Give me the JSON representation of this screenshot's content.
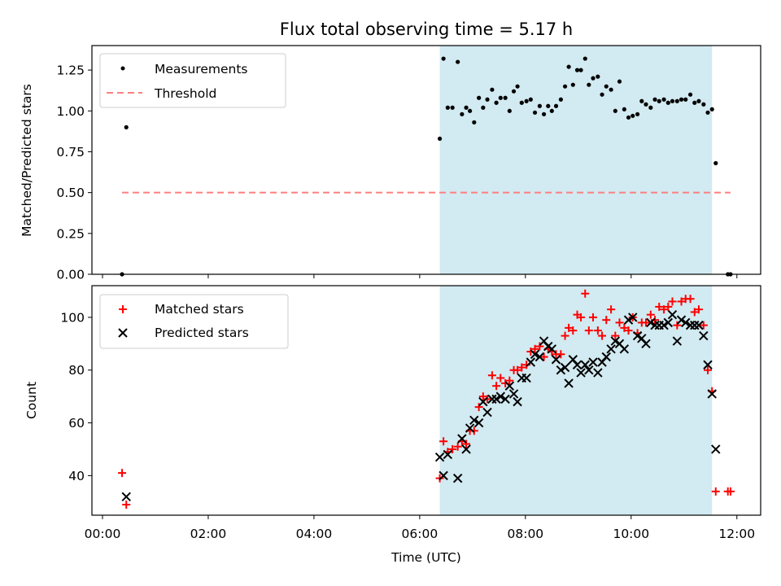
{
  "chart_data": {
    "type": "scatter",
    "title": "Flux total observing time = 5.17 h",
    "xlabel": "Time (UTC)",
    "x_ticks": [
      "00:00",
      "02:00",
      "04:00",
      "06:00",
      "08:00",
      "10:00",
      "12:00"
    ],
    "xlim_hours": [
      -0.2,
      12.45
    ],
    "shaded_region_hours": [
      6.38,
      11.53
    ],
    "colors": {
      "shade": "#add8e6",
      "measure": "#000000",
      "threshold": "#ff7f7f",
      "matched": "#ff0000",
      "predicted": "#000000"
    },
    "panels": [
      {
        "ylabel": "Matched/Predicted stars",
        "ylim": [
          0,
          1.4
        ],
        "y_ticks": [
          "0.00",
          "0.25",
          "0.50",
          "0.75",
          "1.00",
          "1.25"
        ],
        "legend": [
          "Measurements",
          "Threshold"
        ],
        "threshold": {
          "value": 0.5,
          "x_range_hours": [
            0.37,
            11.88
          ]
        },
        "series": [
          {
            "name": "Measurements",
            "points": [
              [
                0.37,
                0.0
              ],
              [
                0.45,
                0.9
              ],
              [
                6.38,
                0.83
              ],
              [
                6.45,
                1.32
              ],
              [
                6.53,
                1.02
              ],
              [
                6.62,
                1.02
              ],
              [
                6.72,
                1.3
              ],
              [
                6.8,
                0.98
              ],
              [
                6.88,
                1.02
              ],
              [
                6.95,
                1.0
              ],
              [
                7.03,
                0.93
              ],
              [
                7.12,
                1.08
              ],
              [
                7.2,
                1.02
              ],
              [
                7.28,
                1.07
              ],
              [
                7.37,
                1.13
              ],
              [
                7.45,
                1.05
              ],
              [
                7.53,
                1.08
              ],
              [
                7.62,
                1.08
              ],
              [
                7.7,
                1.0
              ],
              [
                7.78,
                1.12
              ],
              [
                7.85,
                1.15
              ],
              [
                7.93,
                1.05
              ],
              [
                8.02,
                1.06
              ],
              [
                8.1,
                1.07
              ],
              [
                8.18,
                0.99
              ],
              [
                8.27,
                1.03
              ],
              [
                8.35,
                0.98
              ],
              [
                8.43,
                1.03
              ],
              [
                8.5,
                1.0
              ],
              [
                8.58,
                1.03
              ],
              [
                8.67,
                1.07
              ],
              [
                8.75,
                1.15
              ],
              [
                8.82,
                1.27
              ],
              [
                8.9,
                1.16
              ],
              [
                8.98,
                1.25
              ],
              [
                9.05,
                1.25
              ],
              [
                9.13,
                1.32
              ],
              [
                9.2,
                1.16
              ],
              [
                9.28,
                1.2
              ],
              [
                9.37,
                1.21
              ],
              [
                9.45,
                1.1
              ],
              [
                9.53,
                1.15
              ],
              [
                9.62,
                1.13
              ],
              [
                9.7,
                1.0
              ],
              [
                9.78,
                1.18
              ],
              [
                9.87,
                1.01
              ],
              [
                9.95,
                0.96
              ],
              [
                10.03,
                0.97
              ],
              [
                10.12,
                0.98
              ],
              [
                10.2,
                1.06
              ],
              [
                10.28,
                1.04
              ],
              [
                10.37,
                1.02
              ],
              [
                10.45,
                1.07
              ],
              [
                10.53,
                1.06
              ],
              [
                10.62,
                1.07
              ],
              [
                10.7,
                1.05
              ],
              [
                10.78,
                1.06
              ],
              [
                10.87,
                1.06
              ],
              [
                10.95,
                1.07
              ],
              [
                11.03,
                1.07
              ],
              [
                11.12,
                1.1
              ],
              [
                11.2,
                1.05
              ],
              [
                11.28,
                1.06
              ],
              [
                11.37,
                1.04
              ],
              [
                11.45,
                0.99
              ],
              [
                11.53,
                1.01
              ],
              [
                11.6,
                0.68
              ],
              [
                11.83,
                0.0
              ],
              [
                11.88,
                0.0
              ]
            ]
          },
          {
            "name": "Threshold",
            "value": 0.5
          }
        ]
      },
      {
        "ylabel": "Count",
        "ylim": [
          25,
          112
        ],
        "y_ticks": [
          "40",
          "60",
          "80",
          "100"
        ],
        "legend": [
          "Matched stars",
          "Predicted stars"
        ],
        "series": [
          {
            "name": "Matched stars",
            "points": [
              [
                0.37,
                41
              ],
              [
                0.45,
                29
              ],
              [
                6.38,
                39
              ],
              [
                6.45,
                53
              ],
              [
                6.53,
                49
              ],
              [
                6.62,
                50
              ],
              [
                6.72,
                51
              ],
              [
                6.8,
                53
              ],
              [
                6.88,
                52
              ],
              [
                6.95,
                57
              ],
              [
                7.03,
                57
              ],
              [
                7.12,
                66
              ],
              [
                7.2,
                70
              ],
              [
                7.28,
                69
              ],
              [
                7.37,
                78
              ],
              [
                7.45,
                74
              ],
              [
                7.53,
                77
              ],
              [
                7.62,
                75
              ],
              [
                7.7,
                76
              ],
              [
                7.78,
                80
              ],
              [
                7.85,
                80
              ],
              [
                7.93,
                81
              ],
              [
                8.02,
                82
              ],
              [
                8.1,
                87
              ],
              [
                8.18,
                88
              ],
              [
                8.27,
                89
              ],
              [
                8.35,
                85
              ],
              [
                8.43,
                88
              ],
              [
                8.5,
                87
              ],
              [
                8.58,
                86
              ],
              [
                8.67,
                86
              ],
              [
                8.75,
                93
              ],
              [
                8.82,
                96
              ],
              [
                8.9,
                95
              ],
              [
                8.98,
                101
              ],
              [
                9.05,
                100
              ],
              [
                9.13,
                109
              ],
              [
                9.2,
                95
              ],
              [
                9.28,
                100
              ],
              [
                9.37,
                95
              ],
              [
                9.45,
                93
              ],
              [
                9.53,
                99
              ],
              [
                9.62,
                103
              ],
              [
                9.7,
                93
              ],
              [
                9.78,
                98
              ],
              [
                9.87,
                96
              ],
              [
                9.95,
                95
              ],
              [
                10.03,
                100
              ],
              [
                10.12,
                94
              ],
              [
                10.2,
                98
              ],
              [
                10.28,
                98
              ],
              [
                10.37,
                101
              ],
              [
                10.45,
                99
              ],
              [
                10.53,
                104
              ],
              [
                10.62,
                103
              ],
              [
                10.7,
                104
              ],
              [
                10.78,
                106
              ],
              [
                10.87,
                97
              ],
              [
                10.95,
                106
              ],
              [
                11.03,
                107
              ],
              [
                11.12,
                107
              ],
              [
                11.2,
                102
              ],
              [
                11.28,
                103
              ],
              [
                11.37,
                97
              ],
              [
                11.45,
                80
              ],
              [
                11.53,
                72
              ],
              [
                11.6,
                34
              ],
              [
                11.83,
                34
              ],
              [
                11.88,
                34
              ]
            ]
          },
          {
            "name": "Predicted stars",
            "points": [
              [
                0.45,
                32
              ],
              [
                6.38,
                47
              ],
              [
                6.45,
                40
              ],
              [
                6.53,
                48
              ],
              [
                6.72,
                39
              ],
              [
                6.8,
                54
              ],
              [
                6.88,
                50
              ],
              [
                6.95,
                58
              ],
              [
                7.03,
                61
              ],
              [
                7.12,
                60
              ],
              [
                7.2,
                68
              ],
              [
                7.28,
                64
              ],
              [
                7.37,
                69
              ],
              [
                7.45,
                69
              ],
              [
                7.53,
                70
              ],
              [
                7.62,
                69
              ],
              [
                7.7,
                74
              ],
              [
                7.78,
                71
              ],
              [
                7.85,
                68
              ],
              [
                7.93,
                77
              ],
              [
                8.02,
                77
              ],
              [
                8.1,
                83
              ],
              [
                8.18,
                86
              ],
              [
                8.27,
                85
              ],
              [
                8.35,
                91
              ],
              [
                8.43,
                89
              ],
              [
                8.5,
                88
              ],
              [
                8.58,
                84
              ],
              [
                8.67,
                80
              ],
              [
                8.75,
                81
              ],
              [
                8.82,
                75
              ],
              [
                8.9,
                84
              ],
              [
                8.98,
                82
              ],
              [
                9.05,
                79
              ],
              [
                9.13,
                82
              ],
              [
                9.2,
                80
              ],
              [
                9.28,
                83
              ],
              [
                9.37,
                79
              ],
              [
                9.45,
                83
              ],
              [
                9.53,
                85
              ],
              [
                9.62,
                88
              ],
              [
                9.7,
                91
              ],
              [
                9.78,
                90
              ],
              [
                9.87,
                88
              ],
              [
                9.95,
                99
              ],
              [
                10.03,
                100
              ],
              [
                10.12,
                93
              ],
              [
                10.2,
                92
              ],
              [
                10.28,
                90
              ],
              [
                10.37,
                98
              ],
              [
                10.45,
                97
              ],
              [
                10.53,
                97
              ],
              [
                10.62,
                97
              ],
              [
                10.7,
                98
              ],
              [
                10.78,
                101
              ],
              [
                10.87,
                91
              ],
              [
                10.95,
                99
              ],
              [
                11.03,
                98
              ],
              [
                11.12,
                97
              ],
              [
                11.2,
                97
              ],
              [
                11.28,
                97
              ],
              [
                11.37,
                93
              ],
              [
                11.45,
                82
              ],
              [
                11.53,
                71
              ],
              [
                11.6,
                50
              ]
            ]
          }
        ]
      }
    ]
  }
}
